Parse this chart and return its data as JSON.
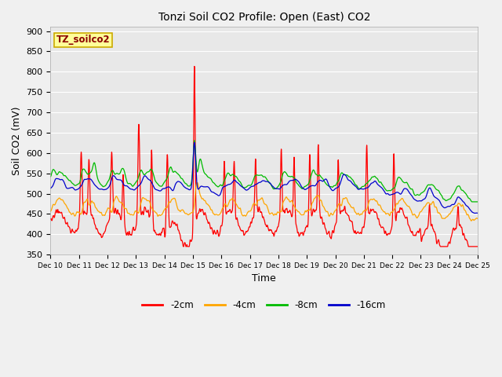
{
  "title": "Tonzi Soil CO2 Profile: Open (East) CO2",
  "ylabel": "Soil CO2 (mV)",
  "xlabel": "Time",
  "annotation": "TZ_soilco2",
  "ylim": [
    350,
    910
  ],
  "yticks": [
    350,
    400,
    450,
    500,
    550,
    600,
    650,
    700,
    750,
    800,
    850,
    900
  ],
  "series_colors": [
    "#ff0000",
    "#ffa500",
    "#00bb00",
    "#0000cc"
  ],
  "series_labels": [
    "-2cm",
    "-4cm",
    "-8cm",
    "-16cm"
  ],
  "bg_color": "#e8e8e8",
  "fig_color": "#f0f0f0",
  "x_ticks": [
    10,
    11,
    12,
    13,
    14,
    15,
    16,
    17,
    18,
    19,
    20,
    21,
    22,
    23,
    24,
    25
  ],
  "annotation_text_color": "#8b0000",
  "annotation_bg": "#ffff99",
  "annotation_border": "#ccaa00"
}
